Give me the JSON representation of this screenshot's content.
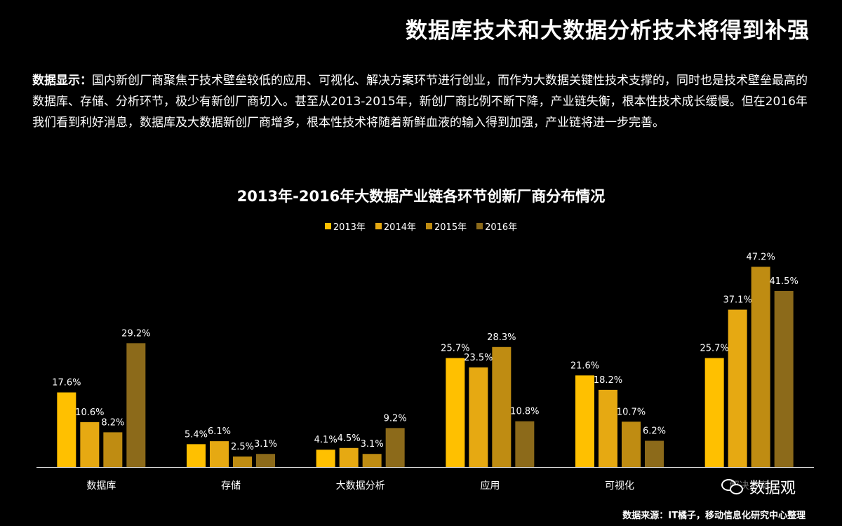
{
  "header": {
    "title": "数据库技术和大数据分析技术将得到补强"
  },
  "intro": {
    "lead": "数据显示：",
    "text": "国内新创厂商聚焦于技术壁垒较低的应用、可视化、解决方案环节进行创业，而作为大数据关键性技术支撑的，同时也是技术壁垒最高的数据库、存储、分析环节，极少有新创厂商切入。甚至从2013-2015年，新创厂商比例不断下降，产业链失衡，根本性技术成长缓慢。但在2016年我们看到利好消息，数据库及大数据新创厂商增多，根本性技术将随着新鲜血液的输入得到加强，产业链将进一步完善。"
  },
  "chart_data": {
    "type": "bar",
    "title": "2013年-2016年大数据产业链各环节创新厂商分布情况",
    "categories": [
      "数据库",
      "存储",
      "大数据分析",
      "应用",
      "可视化",
      "解决方案"
    ],
    "series": [
      {
        "name": "2013年",
        "color": "#FFC000",
        "values": [
          17.6,
          5.4,
          4.1,
          25.7,
          21.6,
          25.7
        ],
        "labels": [
          "17.6%",
          "5.4%",
          "4.1%",
          "25.7%",
          "21.6%",
          "25.7%"
        ]
      },
      {
        "name": "2014年",
        "color": "#E6A912",
        "values": [
          10.6,
          6.1,
          4.5,
          23.5,
          18.2,
          37.1
        ],
        "labels": [
          "10.6%",
          "6.1%",
          "4.5%",
          "23.5%",
          "18.2%",
          "37.1%"
        ]
      },
      {
        "name": "2015年",
        "color": "#BF8C12",
        "values": [
          8.2,
          2.5,
          3.1,
          28.3,
          10.7,
          47.2
        ],
        "labels": [
          "8.2%",
          "2.5%",
          "3.1%",
          "28.3%",
          "10.7%",
          "47.2%"
        ]
      },
      {
        "name": "2016年",
        "color": "#8C6A1A",
        "values": [
          29.2,
          3.1,
          9.2,
          10.8,
          6.2,
          41.5
        ],
        "labels": [
          "29.2%",
          "3.1%",
          "9.2%",
          "10.8%",
          "6.2%",
          "41.5%"
        ]
      }
    ],
    "ylim": [
      0,
      50
    ],
    "grid": false,
    "legend_position": "top-center"
  },
  "watermark": {
    "icon": "wechat-icon",
    "text": "数据观"
  },
  "footer": {
    "source": "数据来源：IT橘子，移动信息化研究中心整理"
  }
}
